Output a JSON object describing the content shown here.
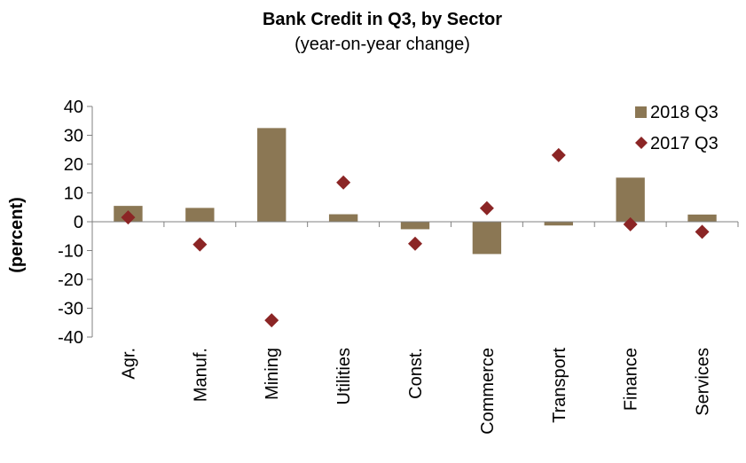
{
  "chart_data": {
    "type": "bar",
    "title": "Bank Credit in Q3, by Sector",
    "subtitle": "(year-on-year change)",
    "ylabel": "(percent)",
    "xlabel": "",
    "ylim": [
      -40,
      40
    ],
    "yticks": [
      40,
      30,
      20,
      10,
      0,
      -10,
      -20,
      -30,
      -40
    ],
    "categories": [
      "Agr.",
      "Manuf.",
      "Mining",
      "Utilities",
      "Const.",
      "Commerce",
      "Transport",
      "Finance",
      "Services"
    ],
    "series": [
      {
        "name": "2018 Q3",
        "mark": "bar",
        "color": "#8b7754",
        "values": [
          5.5,
          4.8,
          32.5,
          2.6,
          -2.6,
          -11.2,
          -1.3,
          15.3,
          2.5
        ]
      },
      {
        "name": "2017 Q3",
        "mark": "diamond",
        "color": "#8b2525",
        "values": [
          1.5,
          -7.9,
          -34.2,
          13.6,
          -7.6,
          4.7,
          23.1,
          -0.9,
          -3.5
        ]
      }
    ],
    "legend_position": "top-right",
    "grid": false
  }
}
